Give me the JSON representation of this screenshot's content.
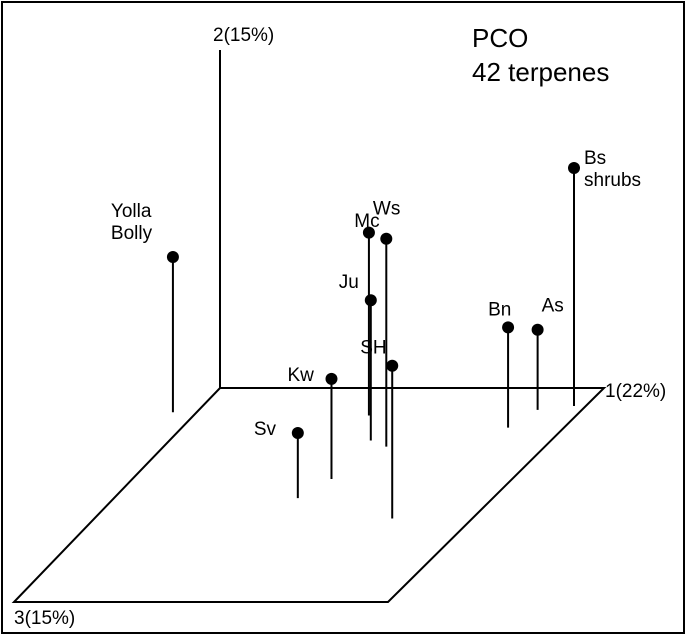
{
  "chart_data": {
    "type": "scatter",
    "title_lines": [
      "PCO",
      "42 terpenes"
    ],
    "axes": {
      "x_label": "1(22%)",
      "y_label": "2(15%)",
      "z_label": "3(15%)"
    },
    "grid": false,
    "legend": "none",
    "points": [
      {
        "label_lines": [
          "Yolla",
          "Bolly"
        ],
        "pco1": 0.0,
        "pco2": 0.62,
        "pco3": 0.22
      },
      {
        "label_lines": [
          "Bs",
          "shrubs"
        ],
        "pco1": 1.0,
        "pco2": 0.95,
        "pco3": 0.0
      },
      {
        "label_lines": [
          "Ws"
        ],
        "pco1": 0.49,
        "pco2": 0.73,
        "pco3": 0.15
      },
      {
        "label_lines": [
          "Mc"
        ],
        "pco1": 0.54,
        "pco2": 0.83,
        "pco3": 0.33
      },
      {
        "label_lines": [
          "As"
        ],
        "pco1": 0.91,
        "pco2": 0.32,
        "pco3": 0.04
      },
      {
        "label_lines": [
          "Bn"
        ],
        "pco1": 0.84,
        "pco2": 0.4,
        "pco3": 0.16
      },
      {
        "label_lines": [
          "Ju"
        ],
        "pco1": 0.5,
        "pco2": 0.56,
        "pco3": 0.3
      },
      {
        "label_lines": [
          "SH"
        ],
        "pco1": 0.57,
        "pco2": 0.61,
        "pco3": 0.76
      },
      {
        "label_lines": [
          "Kw"
        ],
        "pco1": 0.41,
        "pco2": 0.4,
        "pco3": 0.55
      },
      {
        "label_lines": [
          "Sv"
        ],
        "pco1": 0.33,
        "pco2": 0.26,
        "pco3": 0.68
      }
    ]
  }
}
